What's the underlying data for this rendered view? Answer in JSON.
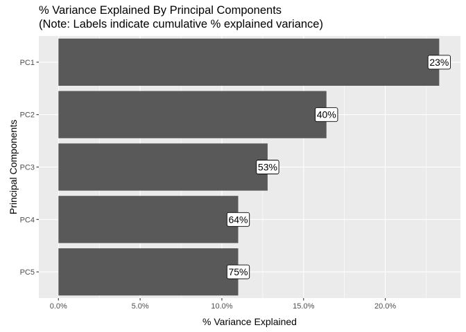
{
  "chart_data": {
    "type": "bar",
    "orientation": "horizontal",
    "title": "% Variance Explained By Principal Components",
    "subtitle": "(Note: Labels indicate cumulative % explained variance)",
    "xlabel": "% Variance Explained",
    "ylabel": "Principal Components",
    "categories": [
      "PC1",
      "PC2",
      "PC3",
      "PC4",
      "PC5"
    ],
    "values": [
      23.3,
      16.4,
      12.8,
      11.0,
      11.0
    ],
    "data_labels": [
      "23%",
      "40%",
      "53%",
      "64%",
      "75%"
    ],
    "xlim": [
      -1.2,
      24.6
    ],
    "x_ticks": [
      0,
      5,
      10,
      15,
      20
    ],
    "x_tick_labels": [
      "0.0%",
      "5.0%",
      "10.0%",
      "15.0%",
      "20.0%"
    ],
    "grid": true,
    "colors": {
      "bar": "#595959",
      "panel_background": "#ebebeb",
      "grid": "#ffffff"
    }
  }
}
